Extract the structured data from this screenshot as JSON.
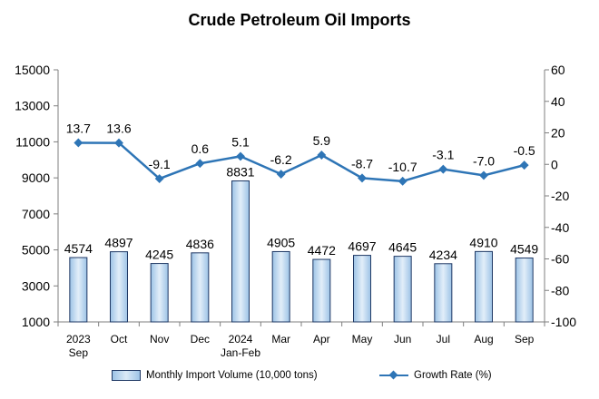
{
  "chart_data": {
    "type": "bar+line",
    "title": "Crude Petroleum Oil Imports",
    "categories": [
      "2023\nSep",
      "Oct",
      "Nov",
      "Dec",
      "2024\nJan-Feb",
      "Mar",
      "Apr",
      "May",
      "Jun",
      "Jul",
      "Aug",
      "Sep"
    ],
    "series": [
      {
        "name": "Monthly Import Volume (10,000 tons)",
        "type": "bar",
        "axis": "left",
        "values": [
          4574,
          4897,
          4245,
          4836,
          8831,
          4905,
          4472,
          4697,
          4645,
          4234,
          4910,
          4549
        ]
      },
      {
        "name": "Growth Rate (%)",
        "type": "line",
        "axis": "right",
        "values": [
          13.7,
          13.6,
          -9.1,
          0.6,
          5.1,
          -6.2,
          5.9,
          -8.7,
          -10.7,
          -3.1,
          -7.0,
          -0.5
        ],
        "labels": [
          "13.7",
          "13.6",
          "-9.1",
          "0.6",
          "5.1",
          "-6.2",
          "5.9",
          "-8.7",
          "-10.7",
          "-3.1",
          "-7.0",
          "-0.5"
        ]
      }
    ],
    "y_left": {
      "min": 1000,
      "max": 15000,
      "ticks": [
        1000,
        3000,
        5000,
        7000,
        9000,
        11000,
        13000,
        15000
      ]
    },
    "y_right": {
      "min": -100,
      "max": 60,
      "ticks": [
        -100,
        -80,
        -60,
        -40,
        -20,
        0,
        20,
        40,
        60
      ]
    },
    "grid": false,
    "legend_position": "bottom",
    "colors": {
      "bar_fill": "#bdd7ee",
      "bar_edge": "#1f3864",
      "line": "#2e75b6"
    }
  }
}
